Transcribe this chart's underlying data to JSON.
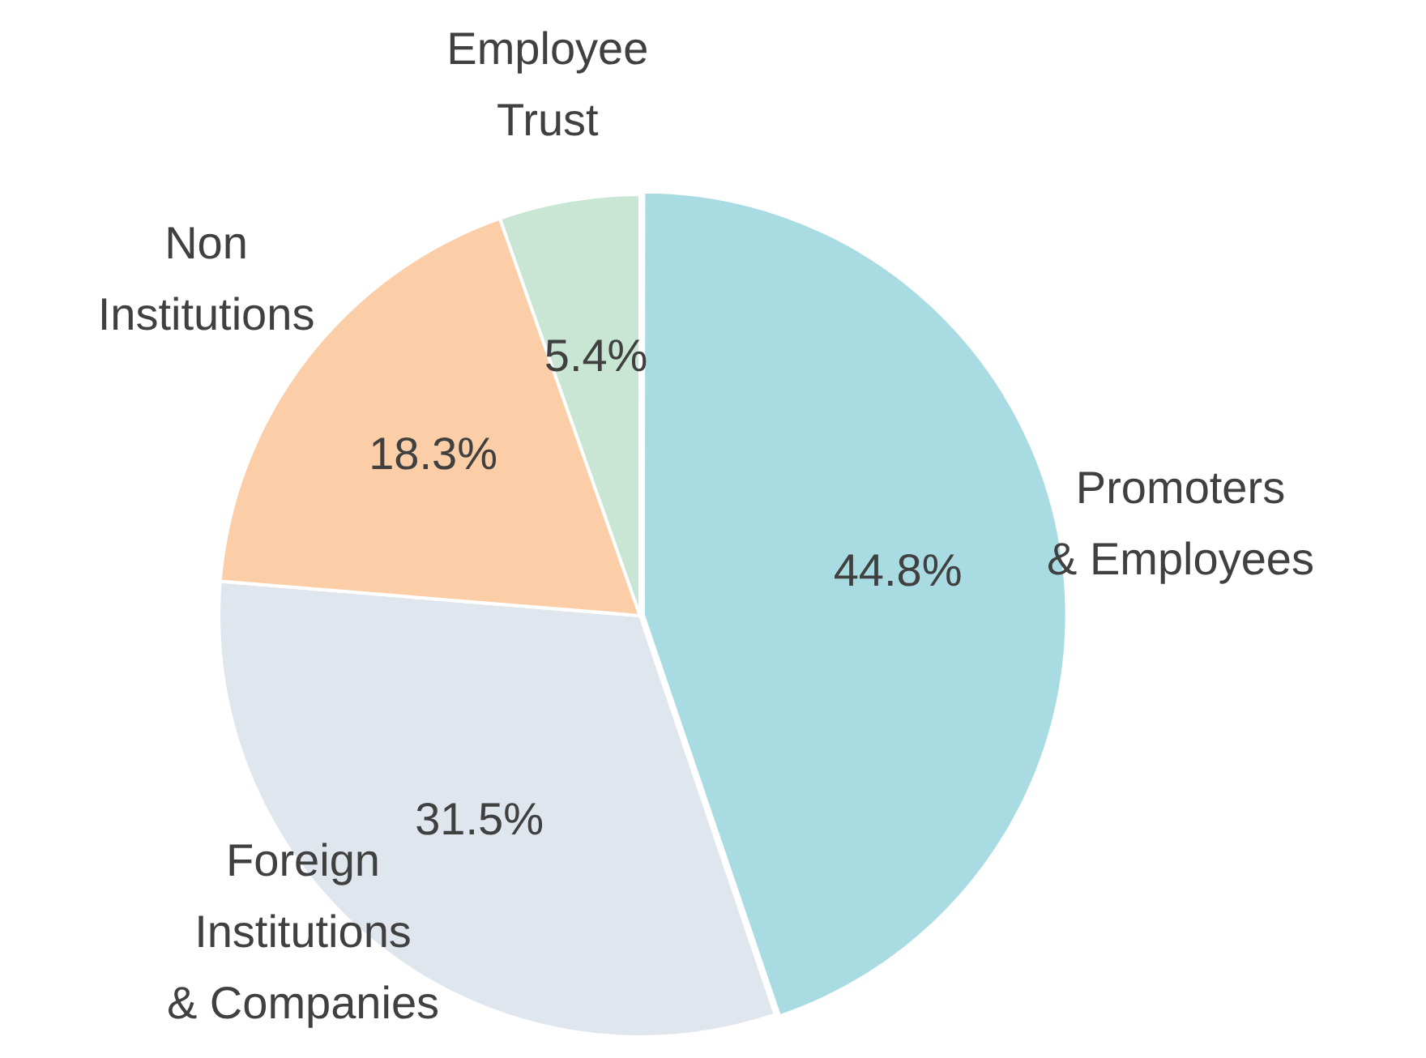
{
  "chart_data": {
    "type": "pie",
    "categories": [
      "Promoters & Employees",
      "Foreign Institutions & Companies",
      "Non Institutions",
      "Employee Trust"
    ],
    "values": [
      44.8,
      31.5,
      18.3,
      5.4
    ],
    "colors": [
      "#a8dce2",
      "#dfe6ee",
      "#fbcea8",
      "#c9e6d4"
    ],
    "value_labels": [
      "44.8%",
      "31.5%",
      "18.3%",
      "5.4%"
    ],
    "legend": false
  }
}
